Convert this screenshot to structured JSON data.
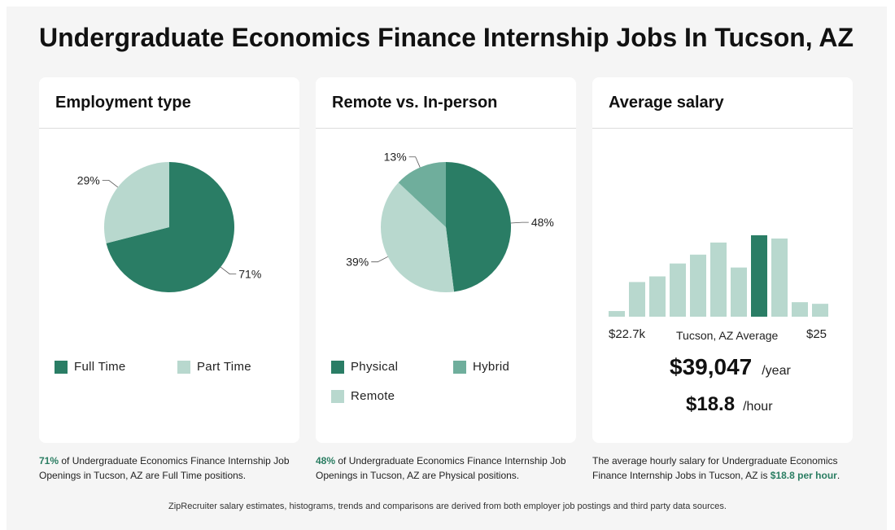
{
  "page": {
    "title": "Undergraduate Economics Finance Internship Jobs In Tucson, AZ",
    "footer": "ZipRecruiter salary estimates, histograms, trends and comparisons are derived from both employer job postings and third party data sources."
  },
  "colors": {
    "dark_green": "#2a7d65",
    "mid_green": "#6fae9c",
    "light_green": "#b8d8ce",
    "highlight_text": "#2a7d62"
  },
  "employment": {
    "title": "Employment type",
    "caption_pct": "71%",
    "caption_rest": " of Undergraduate Economics Finance Internship Job Openings in Tucson, AZ are Full Time positions.",
    "legend": [
      {
        "label": "Full Time",
        "color": "#2a7d65"
      },
      {
        "label": "Part Time",
        "color": "#b8d8ce"
      }
    ]
  },
  "remote": {
    "title": "Remote vs. In-person",
    "caption_pct": "48%",
    "caption_rest": " of Undergraduate Economics Finance Internship Job Openings in Tucson, AZ are Physical positions.",
    "legend": [
      {
        "label": "Physical",
        "color": "#2a7d65"
      },
      {
        "label": "Hybrid",
        "color": "#6fae9c"
      },
      {
        "label": "Remote",
        "color": "#b8d8ce"
      }
    ]
  },
  "salary": {
    "title": "Average salary",
    "min_label": "$22.7k",
    "avg_label": "Tucson, AZ Average",
    "max_label": "$25",
    "yearly": "$39,047",
    "yearly_unit": "/year",
    "hourly": "$18.8",
    "hourly_unit": "/hour",
    "caption_pre": "The average hourly salary for Undergraduate Economics Finance Internship Jobs in Tucson, AZ is ",
    "caption_hl": "$18.8 per hour",
    "caption_post": "."
  },
  "chart_data": [
    {
      "type": "pie",
      "title": "Employment type",
      "slices": [
        {
          "label": "Full Time",
          "value": 71,
          "display": "71%",
          "color": "#2a7d65"
        },
        {
          "label": "Part Time",
          "value": 29,
          "display": "29%",
          "color": "#b8d8ce"
        }
      ]
    },
    {
      "type": "pie",
      "title": "Remote vs. In-person",
      "slices": [
        {
          "label": "Physical",
          "value": 48,
          "display": "48%",
          "color": "#2a7d65"
        },
        {
          "label": "Remote",
          "value": 39,
          "display": "39%",
          "color": "#b8d8ce"
        },
        {
          "label": "Hybrid",
          "value": 13,
          "display": "13%",
          "color": "#6fae9c"
        }
      ]
    },
    {
      "type": "bar",
      "title": "Average salary",
      "categories": [
        "1",
        "2",
        "3",
        "4",
        "5",
        "6",
        "7",
        "8",
        "9",
        "10",
        "11"
      ],
      "values": [
        7,
        43,
        50,
        66,
        77,
        92,
        61,
        101,
        97,
        18,
        16
      ],
      "highlight_index": 7,
      "ylim": [
        0,
        101
      ],
      "colors": {
        "normal": "#b8d8ce",
        "highlight": "#2a7d65"
      }
    }
  ]
}
